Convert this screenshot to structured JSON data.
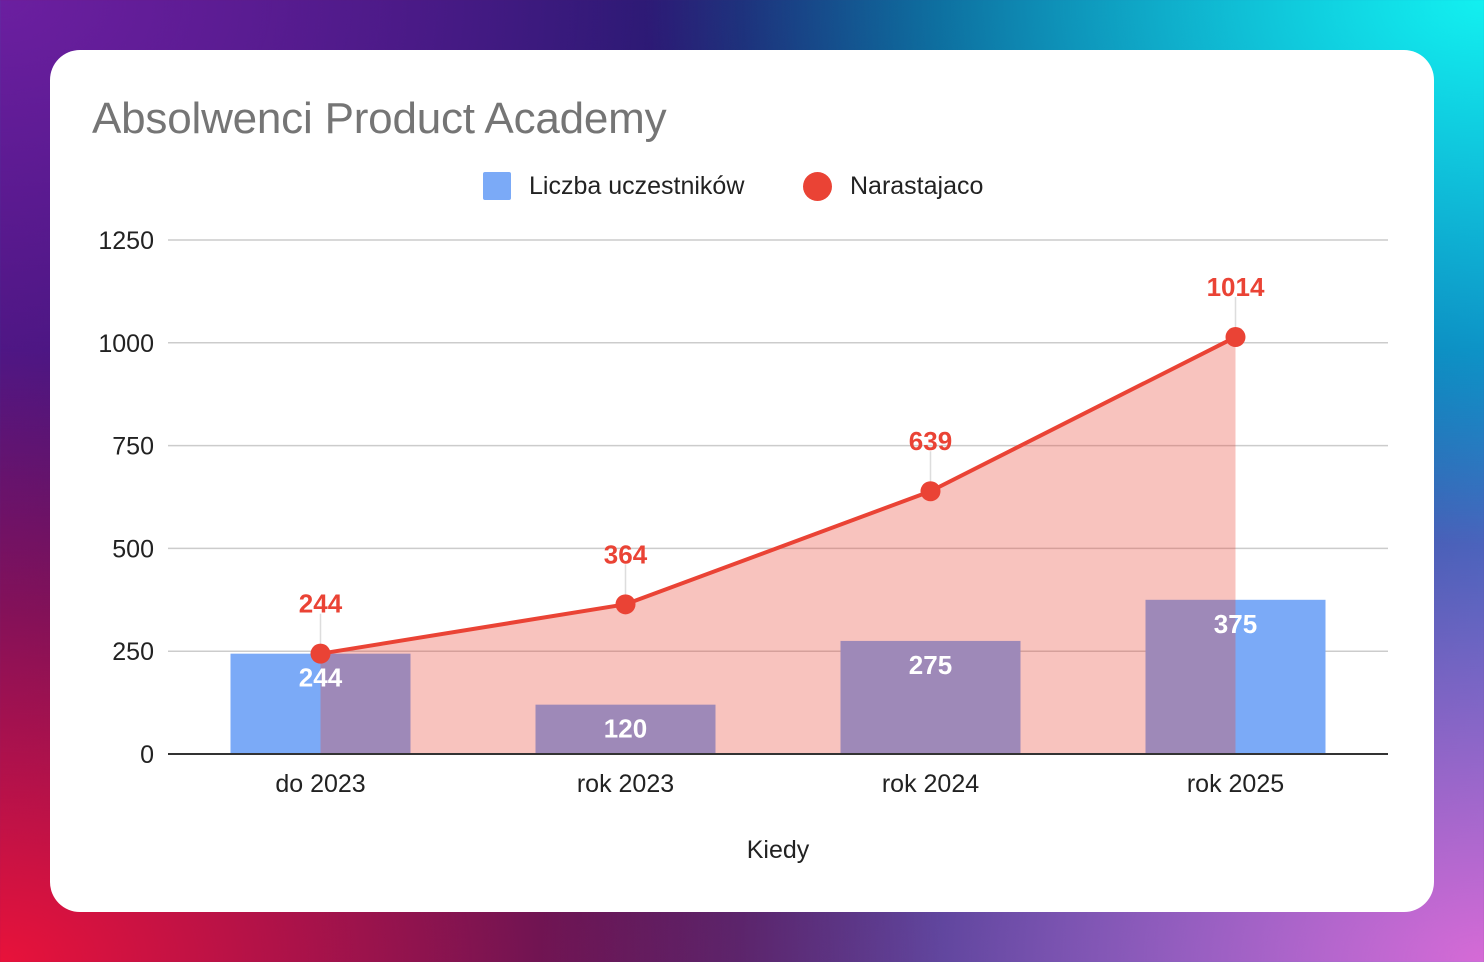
{
  "chart_data": {
    "type": "bar",
    "title": "Absolwenci Product Academy",
    "xlabel": "Kiedy",
    "ylabel": "",
    "categories": [
      "do 2023",
      "rok 2023",
      "rok 2024",
      "rok 2025"
    ],
    "ylim": [
      0,
      1250
    ],
    "yticks": [
      "0",
      "250",
      "500",
      "750",
      "1000",
      "1250"
    ],
    "grid": true,
    "legend_position": "top",
    "series": [
      {
        "name": "Liczba uczestników",
        "type": "bar",
        "color": "#7baaf7",
        "values": [
          244,
          120,
          275,
          375
        ]
      },
      {
        "name": "Narastajaco",
        "type": "area-line",
        "color": "#ea4335",
        "values": [
          244,
          364,
          639,
          1014
        ]
      }
    ]
  }
}
